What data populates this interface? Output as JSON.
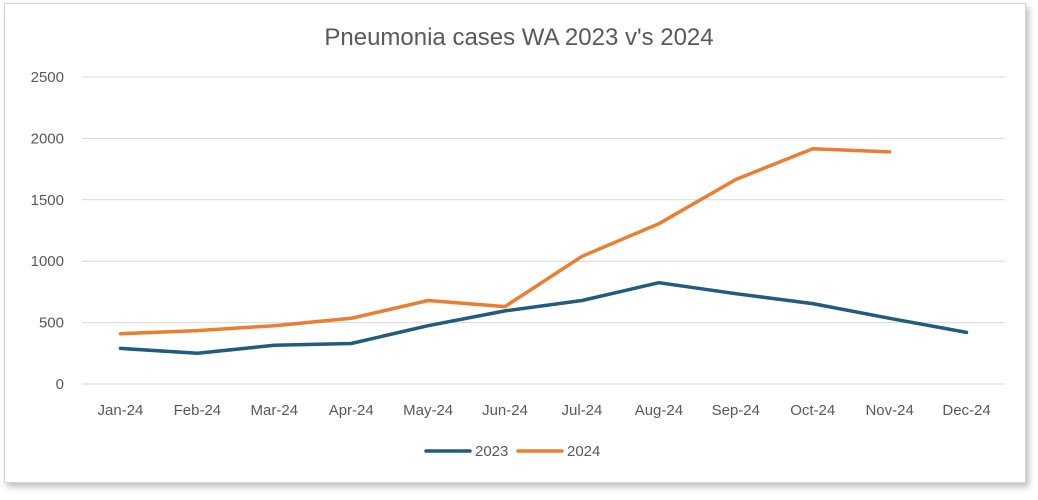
{
  "chart_data": {
    "type": "line",
    "title": "Pneumonia cases WA 2023 v's 2024",
    "xlabel": "",
    "ylabel": "",
    "categories": [
      "Jan-24",
      "Feb-24",
      "Mar-24",
      "Apr-24",
      "May-24",
      "Jun-24",
      "Jul-24",
      "Aug-24",
      "Sep-24",
      "Oct-24",
      "Nov-24",
      "Dec-24"
    ],
    "y_ticks": [
      "0",
      "500",
      "1000",
      "1500",
      "2000",
      "2500"
    ],
    "ylim": [
      0,
      2500
    ],
    "grid": true,
    "legend_position": "bottom",
    "series": [
      {
        "name": "2023",
        "color": "#1f5c80",
        "values": [
          290,
          250,
          315,
          330,
          475,
          595,
          680,
          825,
          735,
          655,
          535,
          420
        ]
      },
      {
        "name": "2024",
        "color": "#ed7d31",
        "values": [
          410,
          435,
          475,
          535,
          680,
          630,
          1040,
          1305,
          1665,
          1915,
          1890,
          null
        ]
      }
    ]
  }
}
